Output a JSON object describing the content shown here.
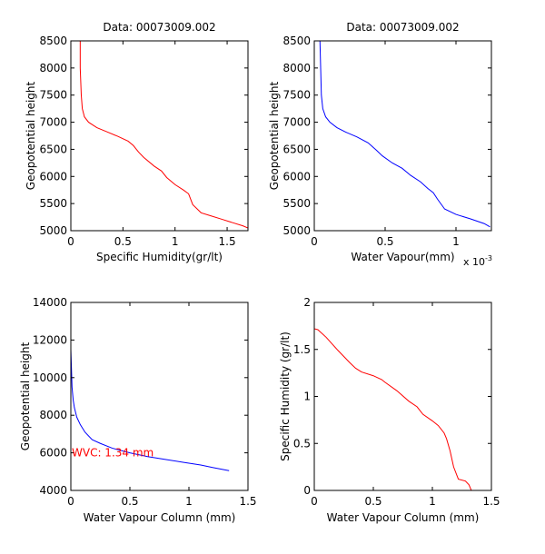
{
  "chart_data": [
    {
      "type": "line",
      "title": "Data: 00073009.002",
      "xlabel": "Specific Humidity(gr/lt)",
      "ylabel": "Geopotential height",
      "xlim": [
        0,
        1.7
      ],
      "ylim": [
        5000,
        8500
      ],
      "xticks": [
        0,
        0.5,
        1,
        1.5
      ],
      "xtick_labels": [
        "0",
        "0.5",
        "1",
        "1.5"
      ],
      "yticks": [
        5000,
        5500,
        6000,
        6500,
        7000,
        7500,
        8000,
        8500
      ],
      "ytick_labels": [
        "5000",
        "5500",
        "6000",
        "6500",
        "7000",
        "7500",
        "8000",
        "8500"
      ],
      "series": [
        {
          "color": "#ff0000",
          "x": [
            0.09,
            0.09,
            0.1,
            0.11,
            0.13,
            0.17,
            0.25,
            0.35,
            0.45,
            0.55,
            0.6,
            0.65,
            0.7,
            0.8,
            0.87,
            0.92,
            1.0,
            1.08,
            1.13,
            1.17,
            1.25,
            1.35,
            1.45,
            1.55,
            1.65,
            1.7
          ],
          "y": [
            8500,
            8000,
            7500,
            7250,
            7100,
            7000,
            6900,
            6820,
            6740,
            6650,
            6570,
            6450,
            6350,
            6190,
            6100,
            5980,
            5850,
            5750,
            5680,
            5480,
            5330,
            5270,
            5210,
            5150,
            5090,
            5050
          ]
        }
      ]
    },
    {
      "type": "line",
      "title": "Data: 00073009.002",
      "xlabel": "Water Vapour(mm)",
      "ylabel": "Geopotential height",
      "xmultiplier": "x 10",
      "xmultiplier_exp": "-3",
      "xlim": [
        0,
        0.00125
      ],
      "ylim": [
        5000,
        8500
      ],
      "xticks": [
        0,
        0.0005,
        0.001
      ],
      "xtick_labels": [
        "0",
        "0.5",
        "1"
      ],
      "yticks": [
        5000,
        5500,
        6000,
        6500,
        7000,
        7500,
        8000,
        8500
      ],
      "ytick_labels": [
        "5000",
        "5500",
        "6000",
        "6500",
        "7000",
        "7500",
        "8000",
        "8500"
      ],
      "series": [
        {
          "color": "#0000ff",
          "x": [
            4e-05,
            4.5e-05,
            5e-05,
            6e-05,
            8e-05,
            0.00011,
            0.00016,
            0.00022,
            0.0003,
            0.00038,
            0.00044,
            0.00048,
            0.00055,
            0.00062,
            0.00068,
            0.00075,
            0.0008,
            0.00084,
            0.00087,
            0.00092,
            0.001,
            0.0011,
            0.0012,
            0.00124
          ],
          "y": [
            8500,
            8000,
            7500,
            7250,
            7100,
            7000,
            6900,
            6820,
            6730,
            6620,
            6480,
            6380,
            6250,
            6150,
            6020,
            5900,
            5780,
            5700,
            5580,
            5400,
            5300,
            5220,
            5130,
            5070
          ]
        }
      ]
    },
    {
      "type": "line",
      "title": "",
      "xlabel": "Water Vapour Column (mm)",
      "ylabel": "Geopotential height",
      "xlim": [
        0,
        1.5
      ],
      "ylim": [
        4000,
        14000
      ],
      "xticks": [
        0,
        0.5,
        1,
        1.5
      ],
      "xtick_labels": [
        "0",
        "0.5",
        "1",
        "1.5"
      ],
      "yticks": [
        4000,
        6000,
        8000,
        10000,
        12000,
        14000
      ],
      "ytick_labels": [
        "4000",
        "6000",
        "8000",
        "10000",
        "12000",
        "14000"
      ],
      "annotation": {
        "text": "WVC: 1.34 mm",
        "color": "#ff0000",
        "x": 0,
        "y": 6000
      },
      "series": [
        {
          "color": "#0000ff",
          "x": [
            0.0,
            0.0,
            0.005,
            0.01,
            0.02,
            0.03,
            0.05,
            0.08,
            0.12,
            0.18,
            0.25,
            0.35,
            0.5,
            0.65,
            0.8,
            0.95,
            1.1,
            1.2,
            1.3,
            1.34
          ],
          "y": [
            12500,
            11500,
            10500,
            9500,
            8800,
            8400,
            7900,
            7500,
            7100,
            6700,
            6500,
            6250,
            6000,
            5800,
            5650,
            5500,
            5350,
            5220,
            5100,
            5050
          ]
        }
      ]
    },
    {
      "type": "line",
      "title": "",
      "xlabel": "Water Vapour Column (mm)",
      "ylabel": "Specific Humidity (gr/lt)",
      "xlim": [
        0,
        1.5
      ],
      "ylim": [
        0,
        2
      ],
      "xticks": [
        0,
        0.5,
        1,
        1.5
      ],
      "xtick_labels": [
        "0",
        "0.5",
        "1",
        "1.5"
      ],
      "yticks": [
        0,
        0.5,
        1,
        1.5,
        2
      ],
      "ytick_labels": [
        "0",
        "0.5",
        "1",
        "1.5",
        "2"
      ],
      "series": [
        {
          "color": "#ff0000",
          "x": [
            0.0,
            0.03,
            0.1,
            0.2,
            0.3,
            0.35,
            0.4,
            0.5,
            0.57,
            0.6,
            0.7,
            0.8,
            0.87,
            0.92,
            1.0,
            1.05,
            1.1,
            1.12,
            1.15,
            1.18,
            1.22,
            1.28,
            1.31,
            1.33
          ],
          "y": [
            1.72,
            1.71,
            1.63,
            1.49,
            1.36,
            1.3,
            1.26,
            1.22,
            1.18,
            1.15,
            1.06,
            0.95,
            0.89,
            0.81,
            0.74,
            0.69,
            0.61,
            0.55,
            0.42,
            0.25,
            0.12,
            0.1,
            0.06,
            0.0
          ]
        }
      ]
    }
  ]
}
